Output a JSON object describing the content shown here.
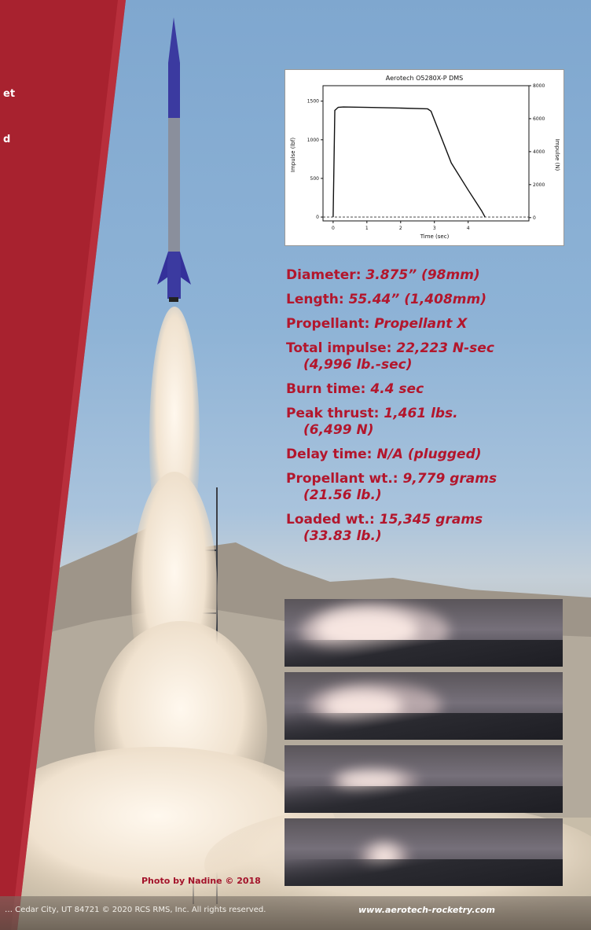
{
  "chart_data": {
    "type": "line",
    "title": "Aerotech O5280X-P DMS",
    "xlabel": "Time (sec)",
    "ylabel": "Impulse (lbf)",
    "y2label": "Impulse (N)",
    "xlim": [
      -0.3,
      5.8
    ],
    "ylim": [
      -50,
      1700
    ],
    "y2lim": [
      -200,
      8000
    ],
    "x_ticks": [
      0,
      1,
      2,
      3,
      4
    ],
    "y_ticks": [
      0,
      500,
      1000,
      1500
    ],
    "y2_ticks": [
      0,
      2000,
      4000,
      6000,
      8000
    ],
    "series": [
      {
        "x": [
          0,
          0.05,
          0.1,
          0.15,
          0.3,
          1.0,
          2.0,
          2.8,
          2.9,
          3.5,
          4.0,
          4.4,
          4.5
        ],
        "y": [
          0,
          1380,
          1400,
          1420,
          1425,
          1420,
          1410,
          1400,
          1370,
          700,
          350,
          80,
          0
        ]
      }
    ],
    "grid": false,
    "legend": "none"
  },
  "banner_glyphs": [
    "et",
    "d"
  ],
  "specs": [
    {
      "label": "Diameter: ",
      "value": "3.875” (98mm)"
    },
    {
      "label": "Length: ",
      "value": "55.44” (1,408mm)"
    },
    {
      "label": "Propellant: ",
      "value": "Propellant X"
    },
    {
      "label": "Total impulse: ",
      "value": "22,223 N-sec",
      "cont": "(4,996 lb.-sec)"
    },
    {
      "label": "Burn time: ",
      "value": "4.4 sec"
    },
    {
      "label": "Peak thrust: ",
      "value": "1,461 lbs.",
      "cont": "(6,499 N)"
    },
    {
      "label": "Delay time: ",
      "value": "N/A (plugged)"
    },
    {
      "label": "Propellant wt.: ",
      "value": "9,779 grams",
      "cont": "(21.56 lb.)"
    },
    {
      "label": "Loaded wt.: ",
      "value": "15,345 grams",
      "cont": "(33.83 lb.)"
    }
  ],
  "photo_credit": "Photo by Nadine © 2018",
  "footer": {
    "copyright": "… Cedar City, UT 84721  © 2020 RCS RMS, Inc.  All rights reserved.",
    "url": "www.aerotech-rocketry.com"
  },
  "colors": {
    "accent": "#b3162c",
    "banner": "#a8222f"
  }
}
